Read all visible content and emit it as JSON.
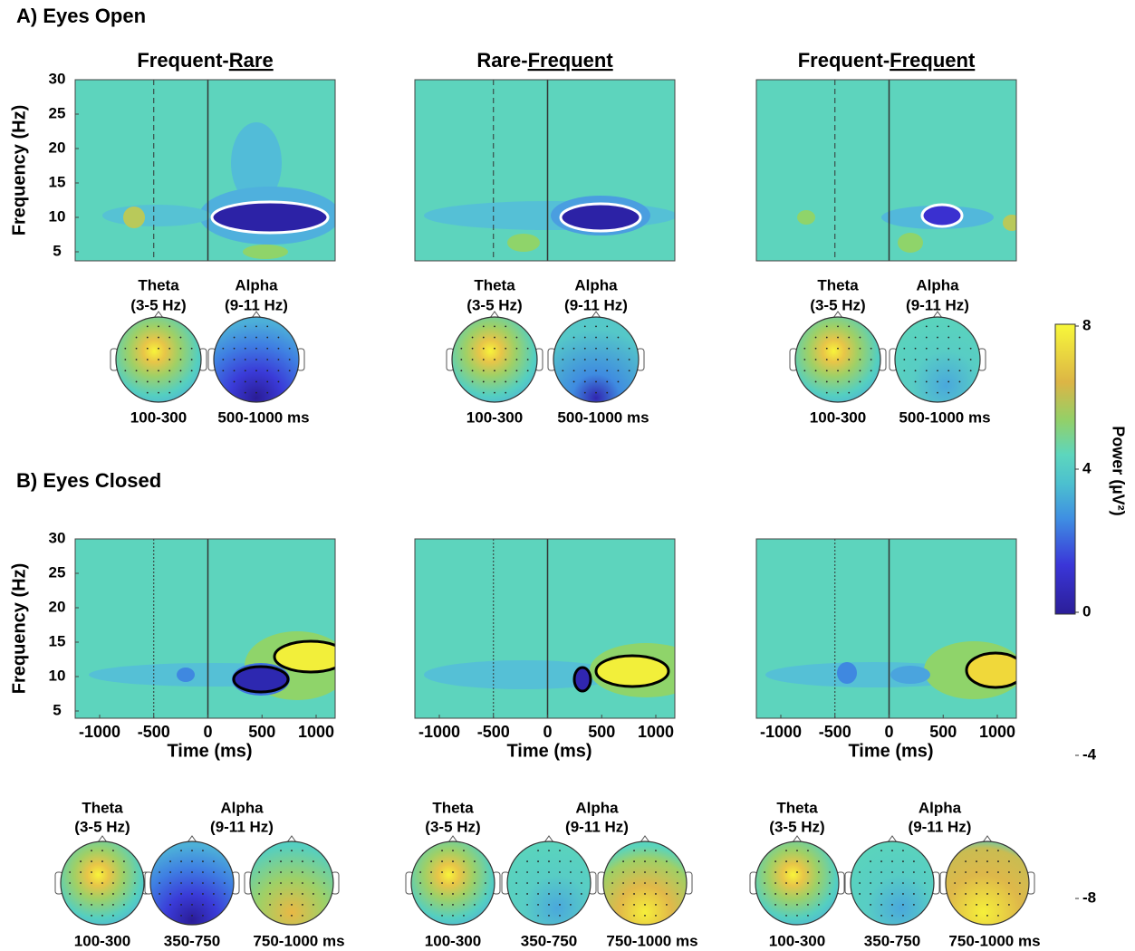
{
  "axes": {
    "y_label": "Frequency (Hz)",
    "yticks": [
      30,
      25,
      20,
      15,
      10,
      5
    ],
    "x_label": "Time (ms)",
    "xticks": [
      -1000,
      -500,
      0,
      500,
      1000
    ]
  },
  "section_a": {
    "label": "A) Eyes Open",
    "titles": [
      {
        "text": "Frequent-",
        "underlined": "Rare"
      },
      {
        "text": "Rare-",
        "underlined": "Frequent"
      },
      {
        "text": "Frequent-",
        "underlined": "Frequent"
      }
    ],
    "topomaps": [
      {
        "labels": [
          [
            "Theta",
            "(3-5 Hz)"
          ],
          [
            "Alpha",
            "(9-11 Hz)"
          ]
        ],
        "windows": [
          "100-300",
          "500-1000 ms"
        ]
      },
      {
        "labels": [
          [
            "Theta",
            "(3-5 Hz)"
          ],
          [
            "Alpha",
            "(9-11 Hz)"
          ]
        ],
        "windows": [
          "100-300",
          "500-1000 ms"
        ]
      },
      {
        "labels": [
          [
            "Theta",
            "(3-5 Hz)"
          ],
          [
            "Alpha",
            "(9-11 Hz)"
          ]
        ],
        "windows": [
          "100-300",
          "500-1000 ms"
        ]
      }
    ]
  },
  "section_b": {
    "label": "B) Eyes Closed",
    "topomaps": [
      {
        "labels": [
          [
            "Theta",
            "(3-5 Hz)"
          ],
          [
            "Alpha",
            "(9-11 Hz)"
          ]
        ],
        "windows": [
          "100-300",
          "350-750",
          "750-1000 ms"
        ]
      },
      {
        "labels": [
          [
            "Theta",
            "(3-5 Hz)"
          ],
          [
            "Alpha",
            "(9-11 Hz)"
          ]
        ],
        "windows": [
          "100-300",
          "350-750",
          "750-1000 ms"
        ]
      },
      {
        "labels": [
          [
            "Theta",
            "(3-5 Hz)"
          ],
          [
            "Alpha",
            "(9-11 Hz)"
          ]
        ],
        "windows": [
          "100-300",
          "350-750",
          "750-1000 ms"
        ]
      }
    ]
  },
  "colorbar": {
    "label": "Power (µV²)",
    "ticks": [
      8,
      4,
      0,
      -4,
      -8
    ]
  }
}
